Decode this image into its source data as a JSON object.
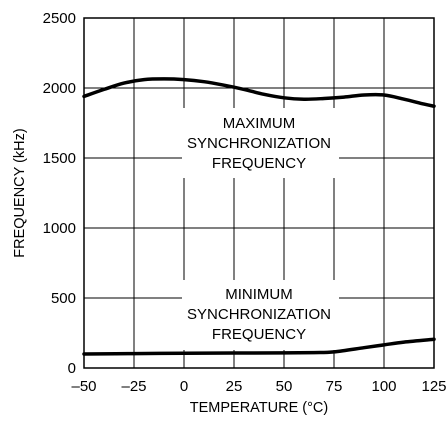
{
  "chart_data": {
    "type": "line",
    "xlabel": "TEMPERATURE (°C)",
    "ylabel": "FREQUENCY (kHz)",
    "xlim": [
      -50,
      125
    ],
    "ylim": [
      0,
      2500
    ],
    "x_ticks": [
      -50,
      -25,
      0,
      25,
      50,
      75,
      100,
      125
    ],
    "y_ticks": [
      0,
      500,
      1000,
      1500,
      2000,
      2500
    ],
    "x_tick_labels": [
      "–50",
      "–25",
      "0",
      "25",
      "50",
      "75",
      "100",
      "125"
    ],
    "y_tick_labels": [
      "0",
      "500",
      "1000",
      "1500",
      "2000",
      "2500"
    ],
    "grid": true,
    "annotations": {
      "max": [
        "MAXIMUM",
        "SYNCHRONIZATION",
        "FREQUENCY"
      ],
      "min": [
        "MINIMUM",
        "SYNCHRONIZATION",
        "FREQUENCY"
      ]
    },
    "series": [
      {
        "x": [
          -50,
          -40,
          -30,
          -20,
          -10,
          0,
          10,
          20,
          30,
          40,
          50,
          60,
          70,
          80,
          90,
          100,
          110,
          120,
          125
        ],
        "y": [
          1940,
          1990,
          2035,
          2060,
          2065,
          2060,
          2045,
          2020,
          1990,
          1955,
          1930,
          1920,
          1925,
          1935,
          1950,
          1950,
          1920,
          1885,
          1870
        ]
      },
      {
        "x": [
          -50,
          -25,
          0,
          25,
          50,
          65,
          75,
          90,
          100,
          110,
          125
        ],
        "y": [
          100,
          103,
          105,
          107,
          108,
          110,
          115,
          145,
          165,
          185,
          205
        ]
      }
    ]
  }
}
